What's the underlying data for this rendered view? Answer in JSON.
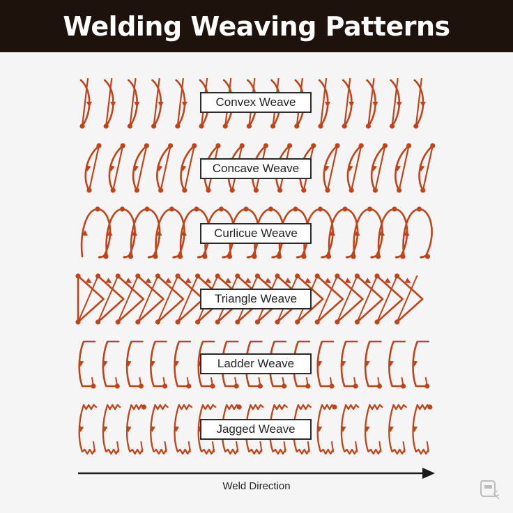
{
  "title": "Welding Weaving Patterns",
  "pattern_color": "#c0431a",
  "patterns": [
    {
      "id": "convex",
      "label": "Convex Weave"
    },
    {
      "id": "concave",
      "label": "Concave Weave"
    },
    {
      "id": "curlicue",
      "label": "Curlicue Weave"
    },
    {
      "id": "triangle",
      "label": "Triangle Weave"
    },
    {
      "id": "ladder",
      "label": "Ladder Weave"
    },
    {
      "id": "jagged",
      "label": "Jagged Weave"
    }
  ],
  "direction_label": "Weld Direction",
  "logo_icon": "welding-helmet-icon"
}
